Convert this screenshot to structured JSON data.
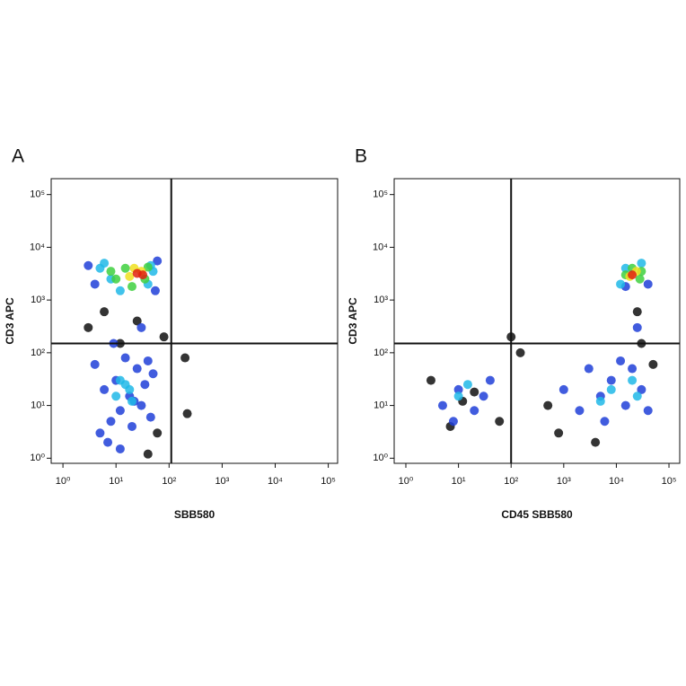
{
  "chart_data": [
    {
      "type": "scatter",
      "label": "A",
      "x_label": "SBB580",
      "y_label": "CD3 APC",
      "xscale": "log",
      "yscale": "log",
      "xlim": [
        0.6,
        150000
      ],
      "ylim": [
        0.8,
        200000
      ],
      "xticks": [
        {
          "value": 1,
          "label": "10⁰"
        },
        {
          "value": 10,
          "label": "10¹"
        },
        {
          "value": 100,
          "label": "10²"
        },
        {
          "value": 1000,
          "label": "10³"
        },
        {
          "value": 10000,
          "label": "10⁴"
        },
        {
          "value": 100000,
          "label": "10⁵"
        }
      ],
      "yticks": [
        {
          "value": 1,
          "label": "10⁰"
        },
        {
          "value": 10,
          "label": "10¹"
        },
        {
          "value": 100,
          "label": "10²"
        },
        {
          "value": 1000,
          "label": "10³"
        },
        {
          "value": 10000,
          "label": "10⁴"
        },
        {
          "value": 100000,
          "label": "10⁵"
        }
      ],
      "gate": {
        "x": 110,
        "y": 150
      },
      "series": [
        {
          "color": "#111111",
          "x": [
            60,
            80,
            3,
            40,
            200,
            220,
            12,
            25,
            6
          ],
          "values": [
            3,
            200,
            300,
            1.2,
            80,
            7,
            150,
            400,
            600
          ]
        },
        {
          "color": "#2040d8",
          "x": [
            5,
            8,
            12,
            20,
            30,
            45,
            6,
            10,
            18,
            35,
            50,
            4,
            15,
            25,
            40,
            7,
            12,
            22,
            9,
            30,
            4,
            55,
            3,
            60
          ],
          "values": [
            3,
            5,
            8,
            4,
            10,
            6,
            20,
            30,
            15,
            25,
            40,
            60,
            80,
            50,
            70,
            2,
            1.5,
            12,
            150,
            300,
            2000,
            1500,
            4500,
            5500
          ]
        },
        {
          "color": "#20b8e8",
          "x": [
            10,
            15,
            20,
            12,
            18,
            5,
            8,
            12,
            40,
            50,
            6,
            45
          ],
          "values": [
            15,
            25,
            12,
            30,
            20,
            4000,
            2500,
            1500,
            2000,
            3500,
            5000,
            4500
          ]
        },
        {
          "color": "#40d040",
          "x": [
            10,
            15,
            35,
            40,
            20,
            8
          ],
          "values": [
            2500,
            4000,
            2500,
            4200,
            1800,
            3500
          ]
        },
        {
          "color": "#f0e020",
          "x": [
            18,
            30,
            22
          ],
          "values": [
            2800,
            3500,
            4000
          ]
        },
        {
          "color": "#e02010",
          "x": [
            25,
            32
          ],
          "values": [
            3200,
            3000
          ]
        }
      ]
    },
    {
      "type": "scatter",
      "label": "B",
      "x_label": "CD45 SBB580",
      "y_label": "CD3 APC",
      "xscale": "log",
      "yscale": "log",
      "xlim": [
        0.6,
        160000
      ],
      "ylim": [
        0.8,
        200000
      ],
      "xticks": [
        {
          "value": 1,
          "label": "10⁰"
        },
        {
          "value": 10,
          "label": "10¹"
        },
        {
          "value": 100,
          "label": "10²"
        },
        {
          "value": 1000,
          "label": "10³"
        },
        {
          "value": 10000,
          "label": "10⁴"
        },
        {
          "value": 100000,
          "label": "10⁵"
        }
      ],
      "yticks": [
        {
          "value": 1,
          "label": "10⁰"
        },
        {
          "value": 10,
          "label": "10¹"
        },
        {
          "value": 100,
          "label": "10²"
        },
        {
          "value": 1000,
          "label": "10³"
        },
        {
          "value": 10000,
          "label": "10⁴"
        },
        {
          "value": 100000,
          "label": "10⁵"
        }
      ],
      "gate": {
        "x": 100,
        "y": 150
      },
      "series": [
        {
          "color": "#111111",
          "x": [
            3,
            60,
            7,
            500,
            800,
            30000,
            25000,
            100,
            150,
            4000,
            50000,
            12,
            20
          ],
          "values": [
            30,
            5,
            4,
            10,
            3,
            150,
            600,
            200,
            100,
            2,
            60,
            12,
            18
          ]
        },
        {
          "color": "#2040d8",
          "x": [
            5,
            10,
            20,
            40,
            8,
            30,
            1000,
            2000,
            5000,
            8000,
            3000,
            15000,
            30000,
            20000,
            40000,
            25000,
            6000,
            12000,
            15000,
            40000
          ],
          "values": [
            10,
            20,
            8,
            30,
            5,
            15,
            20,
            8,
            15,
            30,
            50,
            10,
            20,
            50,
            8,
            300,
            5,
            70,
            1800,
            2000
          ]
        },
        {
          "color": "#20b8e8",
          "x": [
            10,
            15,
            5000,
            8000,
            20000,
            25000,
            12000,
            15000,
            30000
          ],
          "values": [
            15,
            25,
            12,
            20,
            30,
            15,
            2000,
            4000,
            5000
          ]
        },
        {
          "color": "#40d040",
          "x": [
            15000,
            20000,
            28000,
            30000
          ],
          "values": [
            3000,
            4000,
            2500,
            3500
          ]
        },
        {
          "color": "#f0e020",
          "x": [
            18000,
            24000
          ],
          "values": [
            2800,
            3500
          ]
        },
        {
          "color": "#e02010",
          "x": [
            20000
          ],
          "values": [
            3000
          ]
        }
      ]
    }
  ]
}
